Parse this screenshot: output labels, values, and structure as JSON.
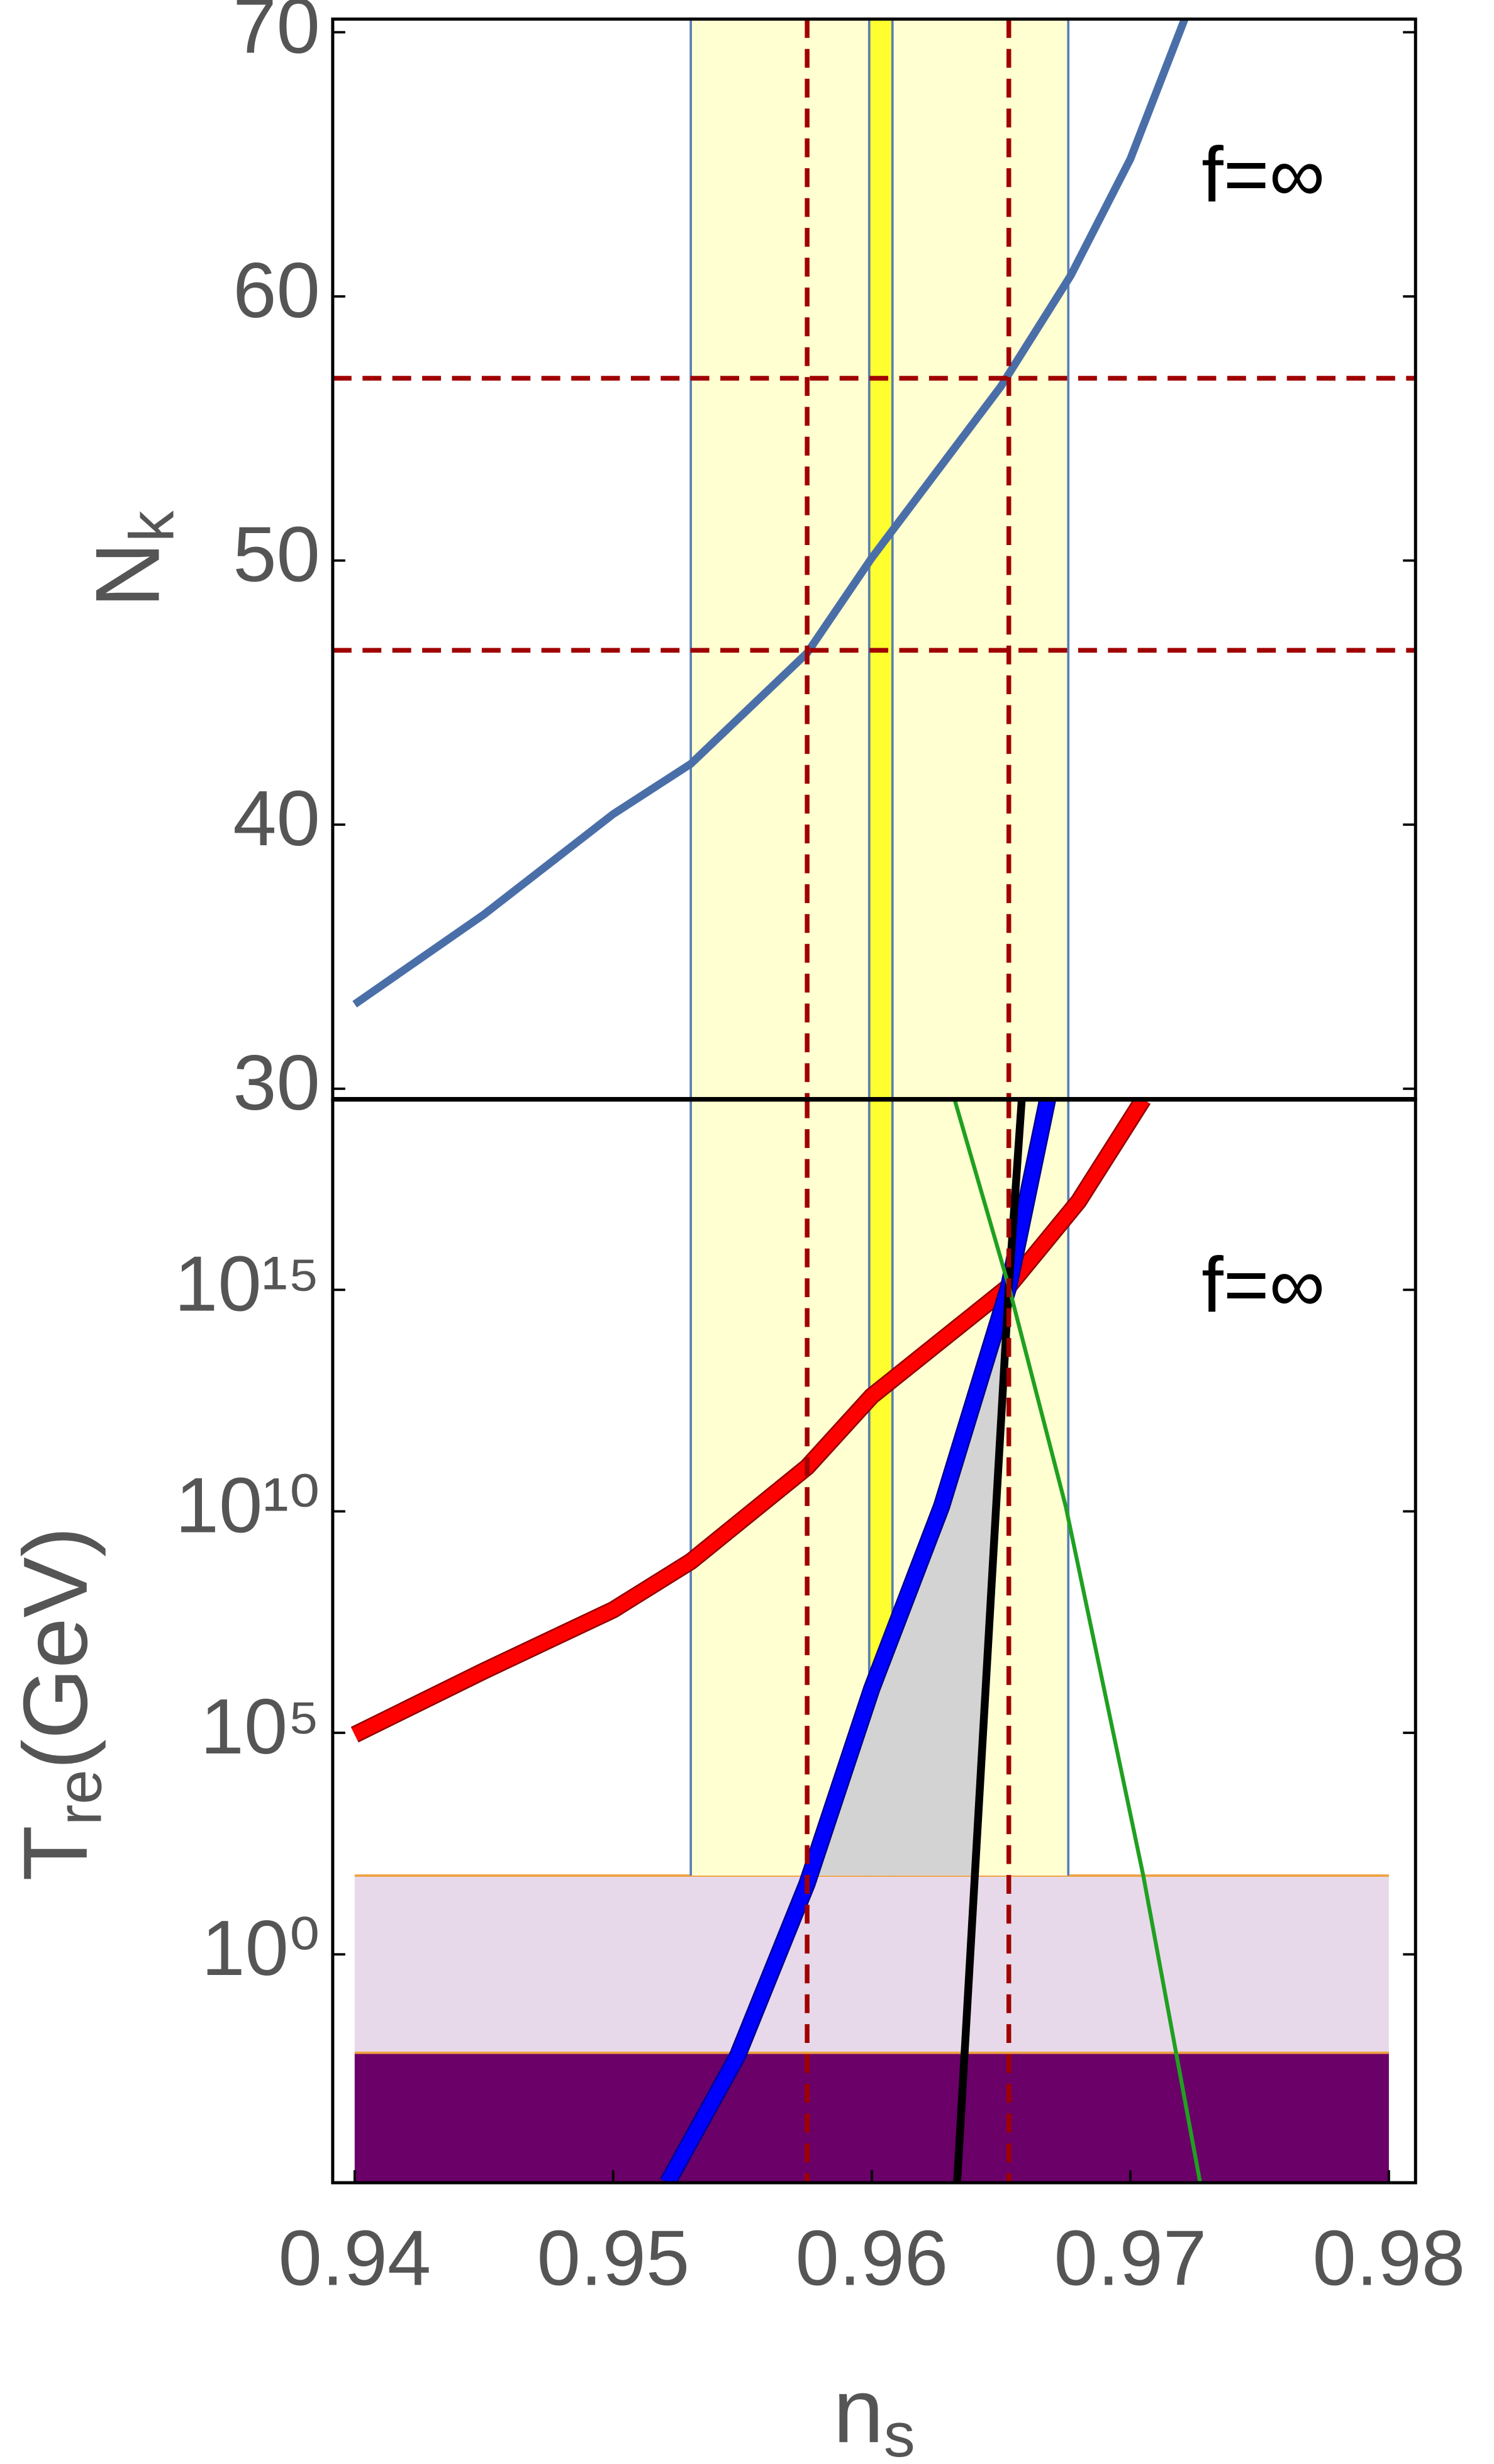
{
  "chart_data": [
    {
      "type": "line",
      "annotation": "f=∞",
      "y_label": {
        "text": "N",
        "sub": "k"
      },
      "xlim": [
        0.93915,
        0.98103
      ],
      "ylim": [
        29.6,
        70.5
      ],
      "yticks": [
        30,
        40,
        50,
        60,
        70
      ],
      "vbands": [
        {
          "x0": 0.953,
          "x1": 0.9676,
          "color": "#ffffd2",
          "edge": "#5a7fb5"
        },
        {
          "x0": 0.9599,
          "x1": 0.9608,
          "color": "#ffff30",
          "edge": "#5a7fb5"
        }
      ],
      "vlines": [
        0.9575,
        0.9653
      ],
      "hlines": [
        56.9,
        46.6
      ],
      "dash_color": "#a00000",
      "series": [
        {
          "color": "#4a6fa8",
          "width": 5,
          "x": [
            0.94,
            0.945,
            0.95,
            0.953,
            0.9575,
            0.96,
            0.965,
            0.9677,
            0.97,
            0.9721
          ],
          "values": [
            33.2,
            36.6,
            40.4,
            42.3,
            46.5,
            50.1,
            56.6,
            60.8,
            65.2,
            70.5
          ]
        }
      ]
    },
    {
      "type": "line",
      "log_y": true,
      "annotation": "f=∞",
      "y_label": {
        "text": "T",
        "sub": "re",
        "rest": "(GeV)"
      },
      "x_label": {
        "text": "n",
        "sub": "s"
      },
      "xlim": [
        0.93915,
        0.98103
      ],
      "ylim": [
        7e-06,
        2e+19
      ],
      "yticks": [
        {
          "value": 1,
          "label": "10⁰"
        },
        {
          "value": 100000,
          "label": "10⁵"
        },
        {
          "value": 10000000000,
          "label": "10¹⁰"
        },
        {
          "value": 1000000000000000.0,
          "label": "10¹⁵"
        }
      ],
      "xticks": [
        0.94,
        0.95,
        0.96,
        0.97,
        0.98
      ],
      "vbands": [
        {
          "x0": 0.953,
          "x1": 0.9676,
          "y0": 60,
          "color": "#ffffd2",
          "edge": "#5a7fb5"
        },
        {
          "x0": 0.9599,
          "x1": 0.9608,
          "y0": 60,
          "color": "#ffff30",
          "edge": "#5a7fb5"
        }
      ],
      "hbands": [
        {
          "y0": 0.006,
          "y1": 60,
          "x0": 0.94,
          "x1": 0.98,
          "color": "#e8d9ea",
          "edge": "#f0a040"
        },
        {
          "y1": 0.006,
          "x0": 0.94,
          "x1": 0.98,
          "color": "#6a0068",
          "edge": "#f0a040"
        }
      ],
      "vlines": [
        0.9575,
        0.9653
      ],
      "dash_color": "#a00000",
      "region": {
        "color": "#d3d3d3",
        "x": [
          0.9578,
          0.96,
          0.9627,
          0.9653,
          0.9639
        ],
        "values": [
          60,
          1000000,
          13000000000,
          1200000000000000.0,
          60
        ]
      },
      "series": [
        {
          "color": "#ff0000",
          "outline": "#900000",
          "width": 9,
          "x": [
            0.94,
            0.945,
            0.95,
            0.953,
            0.9575,
            0.96,
            0.9653,
            0.968,
            0.9705
          ],
          "values": [
            91000,
            2500000,
            60000000,
            740000000,
            100000000000,
            4000000000000,
            1200000000000000.0,
            1e+17,
            2e+19
          ]
        },
        {
          "color": "#0000ff",
          "outline": "#000090",
          "width": 9,
          "x": [
            0.9521,
            0.9548,
            0.9575,
            0.96,
            0.9627,
            0.9653,
            0.9668
          ],
          "values": [
            7e-06,
            0.005,
            40,
            1000000,
            13000000000,
            1200000000000000.0,
            2e+19
          ]
        },
        {
          "color": "#000000",
          "width": 5,
          "x": [
            0.9633,
            0.9653,
            0.9658
          ],
          "values": [
            7e-06,
            1200000000000000.0,
            2e+19
          ]
        },
        {
          "color": "#20a020",
          "width": 2.5,
          "x": [
            0.9632,
            0.9653,
            0.9675,
            0.9705,
            0.9727
          ],
          "values": [
            2e+19,
            1200000000000000.0,
            13000000000,
            60,
            7e-06
          ]
        }
      ]
    }
  ]
}
